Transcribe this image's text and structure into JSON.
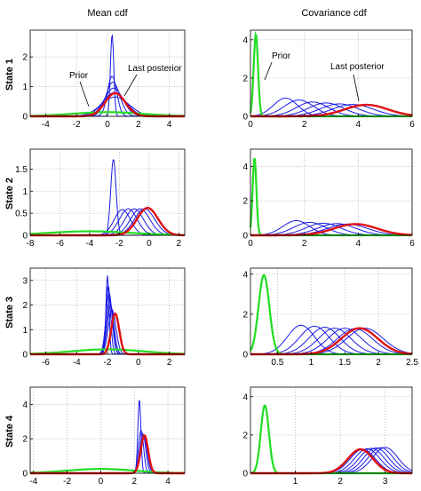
{
  "columns": {
    "mean_title": "Mean cdf",
    "cov_title": "Covariance cdf"
  },
  "rows": [
    "State 1",
    "State 2",
    "State 3",
    "State 4"
  ],
  "annotations": {
    "prior": "Prior",
    "last_posterior": "Last posterior"
  },
  "colors": {
    "prior": "#22dd22",
    "posterior": "#1a1ae6",
    "last_posterior": "#e01010"
  },
  "chart_data": [
    {
      "type": "line",
      "panel": "mean",
      "row": "State 1",
      "title": "Mean cdf",
      "xlim": [
        -5,
        5
      ],
      "ylim": [
        0,
        2.9
      ],
      "xticks": [
        -4,
        -2,
        0,
        2,
        4
      ],
      "yticks": [
        0,
        1,
        2
      ],
      "grid": true,
      "prior": {
        "mu": 0,
        "sigma": 2.3,
        "peak": 0.14
      },
      "posteriors": [
        {
          "mu": 0.3,
          "sigma": 0.11,
          "peak": 2.75
        },
        {
          "mu": 0.3,
          "sigma": 0.3,
          "peak": 1.35
        },
        {
          "mu": 0.35,
          "sigma": 0.45,
          "peak": 1.15
        },
        {
          "mu": 0.4,
          "sigma": 0.6,
          "peak": 0.95
        },
        {
          "mu": 0.45,
          "sigma": 0.75,
          "peak": 0.8
        },
        {
          "mu": 0.5,
          "sigma": 0.9,
          "peak": 0.65
        }
      ],
      "last_posterior": {
        "mu": 0.5,
        "sigma": 0.65,
        "peak": 0.78
      }
    },
    {
      "type": "line",
      "panel": "cov",
      "row": "State 1",
      "title": "Covariance cdf",
      "xlim": [
        0,
        6
      ],
      "ylim": [
        0,
        4.5
      ],
      "xticks": [
        0,
        2,
        4,
        6
      ],
      "yticks": [
        0,
        2,
        4
      ],
      "grid": true,
      "prior": {
        "mu": 0.2,
        "sigma": 0.08,
        "peak": 4.3
      },
      "posteriors": [
        {
          "mu": 1.3,
          "sigma": 0.45,
          "peak": 0.95
        },
        {
          "mu": 1.8,
          "sigma": 0.55,
          "peak": 0.85
        },
        {
          "mu": 2.3,
          "sigma": 0.6,
          "peak": 0.75
        },
        {
          "mu": 2.8,
          "sigma": 0.65,
          "peak": 0.7
        },
        {
          "mu": 3.3,
          "sigma": 0.7,
          "peak": 0.65
        },
        {
          "mu": 3.8,
          "sigma": 0.75,
          "peak": 0.62
        }
      ],
      "last_posterior": {
        "mu": 4.3,
        "sigma": 0.8,
        "peak": 0.6
      }
    },
    {
      "type": "line",
      "panel": "mean",
      "row": "State 2",
      "xlim": [
        -8,
        2.4
      ],
      "ylim": [
        0,
        1.95
      ],
      "xticks": [
        -8,
        -6,
        -4,
        -2,
        0,
        2
      ],
      "yticks": [
        0,
        0.5,
        1,
        1.5
      ],
      "grid": true,
      "prior": {
        "mu": -4,
        "sigma": 2.8,
        "peak": 0.09
      },
      "posteriors": [
        {
          "mu": -2.4,
          "sigma": 0.18,
          "peak": 1.72
        },
        {
          "mu": -1.8,
          "sigma": 0.55,
          "peak": 0.58
        },
        {
          "mu": -1.4,
          "sigma": 0.6,
          "peak": 0.6
        },
        {
          "mu": -1.0,
          "sigma": 0.62,
          "peak": 0.6
        },
        {
          "mu": -0.6,
          "sigma": 0.65,
          "peak": 0.6
        },
        {
          "mu": -0.3,
          "sigma": 0.68,
          "peak": 0.6
        }
      ],
      "last_posterior": {
        "mu": -0.1,
        "sigma": 0.7,
        "peak": 0.62
      }
    },
    {
      "type": "line",
      "panel": "cov",
      "row": "State 2",
      "xlim": [
        0,
        6
      ],
      "ylim": [
        0,
        5
      ],
      "xticks": [
        0,
        2,
        4,
        6
      ],
      "yticks": [
        0,
        2,
        4
      ],
      "grid": true,
      "prior": {
        "mu": 0.15,
        "sigma": 0.07,
        "peak": 4.5
      },
      "posteriors": [
        {
          "mu": 1.7,
          "sigma": 0.5,
          "peak": 0.85
        },
        {
          "mu": 2.2,
          "sigma": 0.6,
          "peak": 0.75
        },
        {
          "mu": 2.7,
          "sigma": 0.65,
          "peak": 0.7
        },
        {
          "mu": 3.2,
          "sigma": 0.7,
          "peak": 0.68
        },
        {
          "mu": 3.6,
          "sigma": 0.75,
          "peak": 0.65
        }
      ],
      "last_posterior": {
        "mu": 3.9,
        "sigma": 0.8,
        "peak": 0.65
      }
    },
    {
      "type": "line",
      "panel": "mean",
      "row": "State 3",
      "xlim": [
        -7,
        3
      ],
      "ylim": [
        0,
        3.5
      ],
      "xticks": [
        -6,
        -4,
        -2,
        0,
        2
      ],
      "yticks": [
        0,
        1,
        2,
        3
      ],
      "grid": true,
      "prior": {
        "mu": -2,
        "sigma": 2.3,
        "peak": 0.2
      },
      "posteriors": [
        {
          "mu": -2.0,
          "sigma": 0.1,
          "peak": 3.2
        },
        {
          "mu": -1.95,
          "sigma": 0.15,
          "peak": 2.8
        },
        {
          "mu": -1.9,
          "sigma": 0.2,
          "peak": 2.5
        },
        {
          "mu": -1.85,
          "sigma": 0.2,
          "peak": 2.2
        },
        {
          "mu": -1.8,
          "sigma": 0.22,
          "peak": 2.0
        },
        {
          "mu": -1.7,
          "sigma": 0.25,
          "peak": 1.8
        }
      ],
      "last_posterior": {
        "mu": -1.5,
        "sigma": 0.26,
        "peak": 1.65
      }
    },
    {
      "type": "line",
      "panel": "cov",
      "row": "State 3",
      "xlim": [
        0.1,
        2.5
      ],
      "ylim": [
        0,
        4.3
      ],
      "xticks": [
        0.5,
        1,
        1.5,
        2,
        2.5
      ],
      "yticks": [
        0,
        2,
        4
      ],
      "grid": true,
      "prior": {
        "mu": 0.3,
        "sigma": 0.08,
        "peak": 3.95
      },
      "posteriors": [
        {
          "mu": 0.85,
          "sigma": 0.2,
          "peak": 1.45
        },
        {
          "mu": 1.05,
          "sigma": 0.22,
          "peak": 1.4
        },
        {
          "mu": 1.2,
          "sigma": 0.23,
          "peak": 1.35
        },
        {
          "mu": 1.35,
          "sigma": 0.24,
          "peak": 1.3
        },
        {
          "mu": 1.5,
          "sigma": 0.25,
          "peak": 1.3
        },
        {
          "mu": 1.65,
          "sigma": 0.26,
          "peak": 1.28
        },
        {
          "mu": 1.8,
          "sigma": 0.27,
          "peak": 1.3
        }
      ],
      "last_posterior": {
        "mu": 1.72,
        "sigma": 0.27,
        "peak": 1.3
      }
    },
    {
      "type": "line",
      "panel": "mean",
      "row": "State 4",
      "xlim": [
        -4.2,
        5
      ],
      "ylim": [
        0,
        5
      ],
      "xticks": [
        -4,
        -2,
        0,
        2,
        4
      ],
      "yticks": [
        0,
        2,
        4
      ],
      "grid": true,
      "prior": {
        "mu": 0,
        "sigma": 2.0,
        "peak": 0.25
      },
      "posteriors": [
        {
          "mu": 2.3,
          "sigma": 0.09,
          "peak": 4.3
        },
        {
          "mu": 2.4,
          "sigma": 0.15,
          "peak": 2.5
        },
        {
          "mu": 2.5,
          "sigma": 0.18,
          "peak": 2.3
        },
        {
          "mu": 2.55,
          "sigma": 0.2,
          "peak": 2.2
        },
        {
          "mu": 2.6,
          "sigma": 0.22,
          "peak": 2.1
        }
      ],
      "last_posterior": {
        "mu": 2.6,
        "sigma": 0.22,
        "peak": 2.2
      }
    },
    {
      "type": "line",
      "panel": "cov",
      "row": "State 4",
      "xlim": [
        0,
        3.6
      ],
      "ylim": [
        0,
        4.5
      ],
      "xticks": [
        1,
        2,
        3
      ],
      "yticks": [
        0,
        2,
        4
      ],
      "grid": true,
      "prior": {
        "mu": 0.32,
        "sigma": 0.09,
        "peak": 3.55
      },
      "posteriors": [
        {
          "mu": 2.5,
          "sigma": 0.28,
          "peak": 1.25
        },
        {
          "mu": 2.6,
          "sigma": 0.28,
          "peak": 1.28
        },
        {
          "mu": 2.7,
          "sigma": 0.28,
          "peak": 1.3
        },
        {
          "mu": 2.8,
          "sigma": 0.28,
          "peak": 1.32
        },
        {
          "mu": 2.9,
          "sigma": 0.28,
          "peak": 1.34
        },
        {
          "mu": 3.0,
          "sigma": 0.28,
          "peak": 1.35
        }
      ],
      "last_posterior": {
        "mu": 2.45,
        "sigma": 0.28,
        "peak": 1.25
      }
    }
  ]
}
